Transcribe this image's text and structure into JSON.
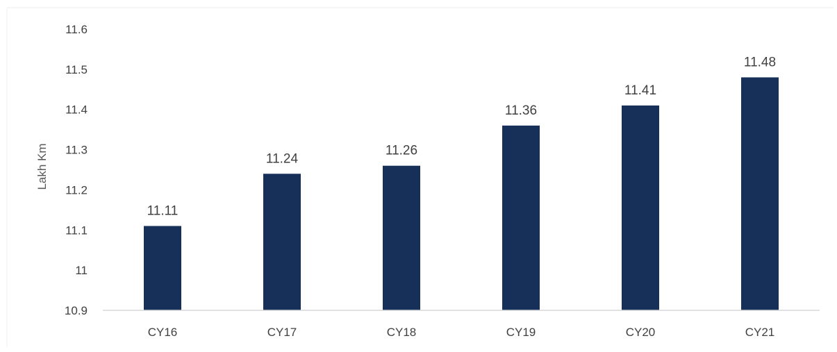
{
  "chart_data": {
    "type": "bar",
    "title": "",
    "xlabel": "",
    "ylabel": "Lakh Km",
    "categories": [
      "CY16",
      "CY17",
      "CY18",
      "CY19",
      "CY20",
      "CY21"
    ],
    "values": [
      11.11,
      11.24,
      11.26,
      11.36,
      11.41,
      11.48
    ],
    "data_labels": [
      "11.11",
      "11.24",
      "11.26",
      "11.36",
      "11.41",
      "11.48"
    ],
    "ylim": [
      10.9,
      11.6
    ],
    "yticks": [
      10.9,
      11.0,
      11.1,
      11.2,
      11.3,
      11.4,
      11.5,
      11.6
    ],
    "ytick_labels": [
      "10.9",
      "11",
      "11.1",
      "11.2",
      "11.3",
      "11.4",
      "11.5",
      "11.6"
    ],
    "grid": false,
    "legend": "none",
    "colors": {
      "bar": "#17305a",
      "axis": "#d9d9d9",
      "text": "#404040"
    }
  }
}
